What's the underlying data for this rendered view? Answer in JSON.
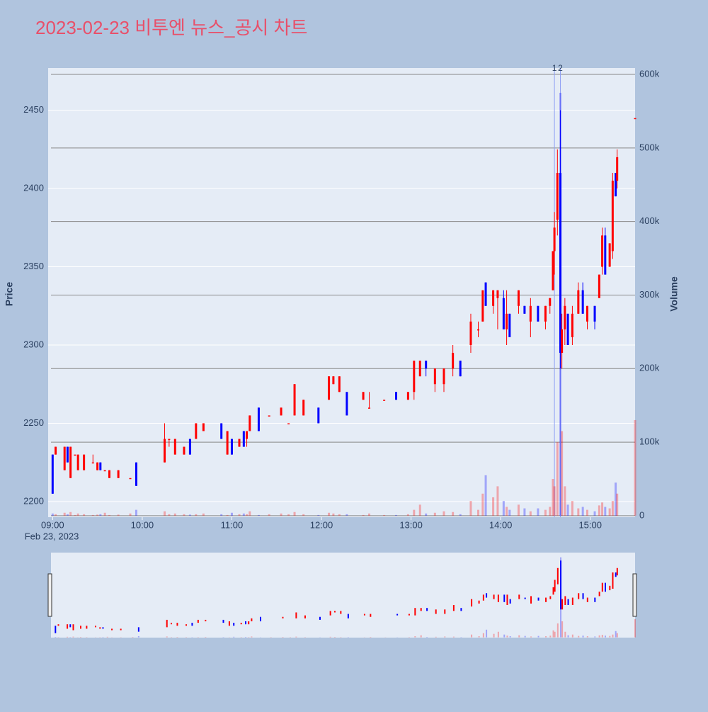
{
  "chart_data": {
    "type": "candlestick",
    "title": "2023-02-23 비투엔 뉴스_공시 차트",
    "ylabel": "Price",
    "y2label": "Volume",
    "date_label": "Feb 23, 2023",
    "up_color": "#ff0000",
    "down_color": "#0000ff",
    "x": [
      "2023-02-23 09:00",
      "2023-02-23 09:02",
      "2023-02-23 09:08",
      "2023-02-23 09:10",
      "2023-02-23 09:12",
      "2023-02-23 09:15",
      "2023-02-23 09:17",
      "2023-02-23 09:21",
      "2023-02-23 09:27",
      "2023-02-23 09:30",
      "2023-02-23 09:32",
      "2023-02-23 09:35",
      "2023-02-23 09:38",
      "2023-02-23 09:44",
      "2023-02-23 09:52",
      "2023-02-23 09:56",
      "2023-02-23 10:15",
      "2023-02-23 10:18",
      "2023-02-23 10:22",
      "2023-02-23 10:28",
      "2023-02-23 10:32",
      "2023-02-23 10:36",
      "2023-02-23 10:41",
      "2023-02-23 10:53",
      "2023-02-23 10:57",
      "2023-02-23 11:00",
      "2023-02-23 11:05",
      "2023-02-23 11:08",
      "2023-02-23 11:10",
      "2023-02-23 11:12",
      "2023-02-23 11:18",
      "2023-02-23 11:25",
      "2023-02-23 11:33",
      "2023-02-23 11:38",
      "2023-02-23 11:42",
      "2023-02-23 11:48",
      "2023-02-23 11:58",
      "2023-02-23 12:05",
      "2023-02-23 12:08",
      "2023-02-23 12:12",
      "2023-02-23 12:17",
      "2023-02-23 12:28",
      "2023-02-23 12:32",
      "2023-02-23 12:42",
      "2023-02-23 12:50",
      "2023-02-23 12:58",
      "2023-02-23 13:02",
      "2023-02-23 13:06",
      "2023-02-23 13:10",
      "2023-02-23 13:16",
      "2023-02-23 13:22",
      "2023-02-23 13:28",
      "2023-02-23 13:33",
      "2023-02-23 13:40",
      "2023-02-23 13:45",
      "2023-02-23 13:48",
      "2023-02-23 13:50",
      "2023-02-23 13:55",
      "2023-02-23 13:58",
      "2023-02-23 14:02",
      "2023-02-23 14:04",
      "2023-02-23 14:06",
      "2023-02-23 14:12",
      "2023-02-23 14:16",
      "2023-02-23 14:20",
      "2023-02-23 14:25",
      "2023-02-23 14:30",
      "2023-02-23 14:33",
      "2023-02-23 14:35",
      "2023-02-23 14:36",
      "2023-02-23 14:38",
      "2023-02-23 14:40",
      "2023-02-23 14:41",
      "2023-02-23 14:43",
      "2023-02-23 14:45",
      "2023-02-23 14:48",
      "2023-02-23 14:52",
      "2023-02-23 14:55",
      "2023-02-23 14:58",
      "2023-02-23 15:03",
      "2023-02-23 15:06",
      "2023-02-23 15:08",
      "2023-02-23 15:10",
      "2023-02-23 15:13",
      "2023-02-23 15:15",
      "2023-02-23 15:17",
      "2023-02-23 15:18",
      "2023-02-23 15:30"
    ],
    "open": [
      2230,
      2230,
      2220,
      2235,
      2215,
      2230,
      2220,
      2220,
      2225,
      2220,
      2225,
      2220,
      2215,
      2215,
      2215,
      2225,
      2225,
      2240,
      2230,
      2230,
      2240,
      2240,
      2245,
      2250,
      2230,
      2240,
      2235,
      2245,
      2240,
      2245,
      2260,
      2255,
      2255,
      2250,
      2255,
      2255,
      2260,
      2265,
      2275,
      2270,
      2270,
      2265,
      2260,
      2265,
      2270,
      2265,
      2270,
      2280,
      2290,
      2275,
      2275,
      2285,
      2290,
      2300,
      2310,
      2315,
      2340,
      2325,
      2330,
      2330,
      2310,
      2320,
      2325,
      2325,
      2315,
      2325,
      2315,
      2325,
      2335,
      2360,
      2380,
      2410,
      2295,
      2310,
      2320,
      2305,
      2320,
      2335,
      2315,
      2325,
      2330,
      2350,
      2370,
      2350,
      2360,
      2410,
      2405,
      2445
    ],
    "high": [
      2230,
      2235,
      2235,
      2235,
      2235,
      2230,
      2230,
      2230,
      2230,
      2225,
      2225,
      2220,
      2220,
      2220,
      2215,
      2225,
      2250,
      2240,
      2240,
      2235,
      2240,
      2250,
      2250,
      2250,
      2245,
      2240,
      2240,
      2245,
      2245,
      2255,
      2260,
      2255,
      2260,
      2250,
      2275,
      2265,
      2260,
      2280,
      2280,
      2280,
      2270,
      2270,
      2270,
      2265,
      2270,
      2270,
      2290,
      2290,
      2290,
      2285,
      2285,
      2300,
      2290,
      2320,
      2315,
      2335,
      2340,
      2335,
      2335,
      2335,
      2335,
      2320,
      2335,
      2325,
      2330,
      2325,
      2325,
      2330,
      2360,
      2385,
      2425,
      2450,
      2320,
      2330,
      2320,
      2325,
      2340,
      2340,
      2325,
      2325,
      2345,
      2375,
      2375,
      2365,
      2410,
      2410,
      2425,
      2445
    ],
    "low": [
      2205,
      2230,
      2220,
      2225,
      2215,
      2230,
      2220,
      2220,
      2225,
      2220,
      2220,
      2220,
      2215,
      2215,
      2215,
      2210,
      2225,
      2235,
      2230,
      2230,
      2230,
      2240,
      2245,
      2240,
      2230,
      2230,
      2235,
      2235,
      2235,
      2245,
      2245,
      2255,
      2255,
      2250,
      2255,
      2255,
      2250,
      2265,
      2275,
      2270,
      2255,
      2265,
      2260,
      2265,
      2265,
      2265,
      2265,
      2280,
      2280,
      2270,
      2270,
      2280,
      2280,
      2295,
      2305,
      2315,
      2325,
      2320,
      2310,
      2310,
      2300,
      2305,
      2320,
      2320,
      2305,
      2315,
      2310,
      2320,
      2335,
      2345,
      2370,
      2285,
      2285,
      2300,
      2300,
      2300,
      2320,
      2320,
      2310,
      2310,
      2330,
      2345,
      2345,
      2350,
      2355,
      2395,
      2400,
      2445
    ],
    "close": [
      2205,
      2235,
      2235,
      2225,
      2235,
      2230,
      2230,
      2230,
      2225,
      2225,
      2220,
      2220,
      2220,
      2220,
      2215,
      2210,
      2240,
      2240,
      2240,
      2235,
      2230,
      2250,
      2250,
      2240,
      2245,
      2230,
      2240,
      2235,
      2245,
      2255,
      2245,
      2255,
      2260,
      2250,
      2275,
      2265,
      2250,
      2280,
      2280,
      2280,
      2255,
      2270,
      2260,
      2265,
      2265,
      2270,
      2290,
      2290,
      2285,
      2285,
      2285,
      2295,
      2280,
      2315,
      2310,
      2335,
      2325,
      2335,
      2335,
      2310,
      2320,
      2305,
      2335,
      2320,
      2325,
      2315,
      2325,
      2330,
      2360,
      2375,
      2410,
      2295,
      2310,
      2325,
      2300,
      2320,
      2335,
      2320,
      2325,
      2315,
      2345,
      2370,
      2345,
      2365,
      2405,
      2395,
      2420,
      2445
    ],
    "volume": [
      3000,
      2000,
      4000,
      2000,
      5000,
      1000,
      3000,
      2000,
      1000,
      1500,
      2000,
      4000,
      1000,
      1500,
      3000,
      8000,
      6000,
      2000,
      3000,
      2000,
      1500,
      2000,
      3000,
      2000,
      1000,
      4000,
      2000,
      3000,
      2000,
      6000,
      1000,
      2000,
      3000,
      2000,
      5000,
      2000,
      1000,
      4000,
      3000,
      2000,
      2000,
      1000,
      3000,
      1000,
      1000,
      2000,
      8000,
      15000,
      3000,
      4000,
      6000,
      5000,
      2000,
      20000,
      8000,
      30000,
      55000,
      25000,
      40000,
      20000,
      12000,
      8000,
      15000,
      10000,
      6000,
      10000,
      8000,
      12000,
      50000,
      40000,
      100000,
      575000,
      115000,
      40000,
      15000,
      20000,
      10000,
      12000,
      8000,
      6000,
      14000,
      18000,
      12000,
      10000,
      20000,
      45000,
      30000,
      130000
    ],
    "xlim": [
      "2023-02-23 08:57",
      "2023-02-23 15:30"
    ],
    "xticks": [
      {
        "value": "2023-02-23 09:00",
        "label": "09:00"
      },
      {
        "value": "2023-02-23 10:00",
        "label": "10:00"
      },
      {
        "value": "2023-02-23 11:00",
        "label": "11:00"
      },
      {
        "value": "2023-02-23 12:00",
        "label": "12:00"
      },
      {
        "value": "2023-02-23 13:00",
        "label": "13:00"
      },
      {
        "value": "2023-02-23 14:00",
        "label": "14:00"
      },
      {
        "value": "2023-02-23 15:00",
        "label": "15:00"
      }
    ],
    "ylim": [
      2190,
      2477
    ],
    "yticks": [
      2200,
      2250,
      2300,
      2350,
      2400,
      2450
    ],
    "y2lim": [
      -2000,
      608700
    ],
    "y2ticks": [
      0,
      {
        "value": 100000,
        "label": "100k"
      },
      {
        "value": 200000,
        "label": "200k"
      },
      {
        "value": 300000,
        "label": "300k"
      },
      {
        "value": 400000,
        "label": "400k"
      },
      {
        "value": 500000,
        "label": "500k"
      },
      {
        "value": 600000,
        "label": "600k"
      }
    ],
    "annotations": [
      {
        "x": "2023-02-23 14:36",
        "label": "1"
      },
      {
        "x": "2023-02-23 14:40",
        "label": "2"
      }
    ],
    "grid": true,
    "rangeslider": true
  }
}
